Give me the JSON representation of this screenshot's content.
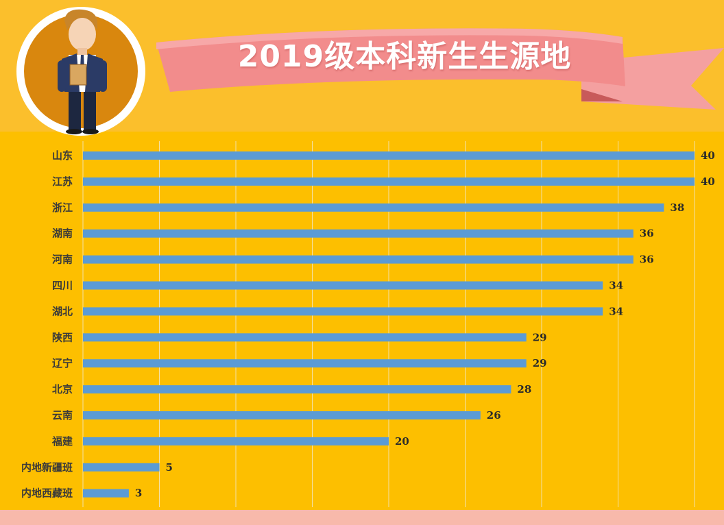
{
  "title": "2019级本科新生生源地",
  "colors": {
    "background": "#fbbf2c",
    "chart_background": "#fdbf00",
    "bar": "#5b9bd5",
    "ribbon": "#f28c8c",
    "ribbon_dark": "#d96a6a",
    "footer": "#f8b9ab",
    "title_text": "#ffffff"
  },
  "illustration": {
    "icon": "student-icon"
  },
  "chart_data": {
    "type": "bar",
    "orientation": "horizontal",
    "title": "2019级本科新生生源地",
    "xlim": [
      0,
      40
    ],
    "grid": true,
    "categories": [
      "山东",
      "江苏",
      "浙江",
      "湖南",
      "河南",
      "四川",
      "湖北",
      "陕西",
      "辽宁",
      "北京",
      "云南",
      "福建",
      "内地新疆班",
      "内地西藏班"
    ],
    "values": [
      40,
      40,
      38,
      36,
      36,
      34,
      34,
      29,
      29,
      28,
      26,
      20,
      5,
      3
    ],
    "data_labels": true
  }
}
